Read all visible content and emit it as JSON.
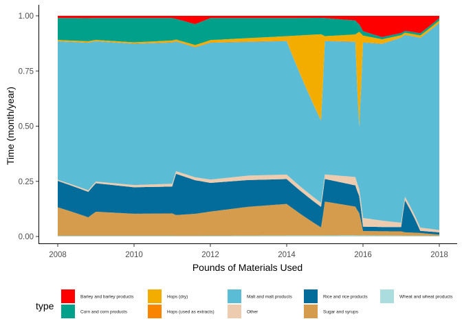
{
  "chart_data": {
    "type": "area",
    "stacked": "fill",
    "xlabel": "Pounds of Materials Used",
    "ylabel": "Time (month/year)",
    "xlim": [
      2008.0,
      2018.0
    ],
    "ylim": [
      0,
      1
    ],
    "x_ticks": [
      2008,
      2010,
      2012,
      2014,
      2016,
      2018
    ],
    "x_tick_labels": [
      "2008",
      "2010",
      "2012",
      "2014",
      "2016",
      "2018"
    ],
    "y_ticks": [
      0.0,
      0.25,
      0.5,
      0.75,
      1.0
    ],
    "y_tick_labels": [
      "0.00",
      "0.25",
      "0.50",
      "0.75",
      "1.00"
    ],
    "grid": false,
    "legend_position": "bottom",
    "legend_title": "type",
    "legend": [
      {
        "key": "barley",
        "label": "Barley and barley products",
        "color": "#FF0000"
      },
      {
        "key": "corn",
        "label": "Corn and corn products",
        "color": "#00A08A"
      },
      {
        "key": "hops_dry",
        "label": "Hops (dry)",
        "color": "#F2AD00"
      },
      {
        "key": "hops_ext",
        "label": "Hops (used as extracts)",
        "color": "#F98400"
      },
      {
        "key": "malt",
        "label": "Malt and malt products",
        "color": "#5BBCD6"
      },
      {
        "key": "other",
        "label": "Other",
        "color": "#ECCBAE"
      },
      {
        "key": "rice",
        "label": "Rice and rice products",
        "color": "#046C9A"
      },
      {
        "key": "sugar",
        "label": "Sugar and syrups",
        "color": "#D69C4E"
      },
      {
        "key": "wheat",
        "label": "Wheat and wheat products",
        "color": "#ABDDDE"
      }
    ],
    "stack_order_bottom_to_top": [
      "wheat",
      "sugar",
      "rice",
      "other",
      "malt",
      "hops_ext",
      "hops_dry",
      "corn",
      "barley"
    ],
    "series": [
      {
        "name": "Barley and barley products",
        "key": "barley",
        "x": [
          2008.0,
          2009.0,
          2010.0,
          2011.0,
          2011.6,
          2012.0,
          2013.0,
          2014.0,
          2015.0,
          2015.8,
          2016.0,
          2016.5,
          2017.0,
          2017.5,
          2018.0
        ],
        "y": [
          0.01,
          0.01,
          0.01,
          0.01,
          0.04,
          0.01,
          0.01,
          0.01,
          0.01,
          0.02,
          0.07,
          0.1,
          0.08,
          0.08,
          0.01
        ]
      },
      {
        "name": "Corn and corn products",
        "key": "corn",
        "x": [
          2008.0,
          2009.0,
          2010.0,
          2011.0,
          2012.0,
          2013.0,
          2014.0,
          2015.0,
          2015.8,
          2016.0,
          2016.5,
          2017.0,
          2017.5,
          2018.0
        ],
        "y": [
          0.1,
          0.1,
          0.11,
          0.1,
          0.1,
          0.09,
          0.08,
          0.08,
          0.06,
          0.02,
          0.01,
          0.01,
          0.01,
          0.01
        ]
      },
      {
        "name": "Hops (dry)",
        "key": "hops_dry",
        "x": [
          2008.0,
          2010.0,
          2012.0,
          2013.0,
          2014.0,
          2014.9,
          2015.0,
          2015.8,
          2015.9,
          2016.0,
          2017.0,
          2018.0
        ],
        "y": [
          0.005,
          0.005,
          0.01,
          0.015,
          0.02,
          0.42,
          0.02,
          0.03,
          0.5,
          0.03,
          0.01,
          0.01
        ]
      },
      {
        "name": "Hops (used as extracts)",
        "key": "hops_ext",
        "x": [
          2008.0,
          2012.0,
          2016.0,
          2018.0
        ],
        "y": [
          0.001,
          0.002,
          0.002,
          0.001
        ]
      },
      {
        "name": "Malt and malt products",
        "key": "malt",
        "x": [
          2008.0,
          2009.0,
          2010.0,
          2011.0,
          2012.0,
          2013.0,
          2014.0,
          2014.9,
          2015.0,
          2015.8,
          2015.9,
          2016.0,
          2016.5,
          2017.0,
          2017.5,
          2018.0
        ],
        "y": [
          0.63,
          0.64,
          0.64,
          0.63,
          0.62,
          0.6,
          0.59,
          0.4,
          0.59,
          0.58,
          0.33,
          0.8,
          0.83,
          0.86,
          0.87,
          0.9
        ]
      },
      {
        "name": "Other",
        "key": "other",
        "x": [
          2008.0,
          2010.0,
          2012.0,
          2013.0,
          2014.0,
          2015.0,
          2016.0,
          2016.5,
          2017.0,
          2018.0
        ],
        "y": [
          0.005,
          0.01,
          0.015,
          0.02,
          0.02,
          0.02,
          0.04,
          0.03,
          0.02,
          0.01
        ]
      },
      {
        "name": "Rice and rice products",
        "key": "rice",
        "x": [
          2008.0,
          2008.8,
          2009.0,
          2010.0,
          2011.0,
          2011.1,
          2012.0,
          2013.0,
          2014.0,
          2014.9,
          2015.0,
          2015.9,
          2016.0,
          2016.5,
          2017.0,
          2017.1,
          2017.5,
          2018.0
        ],
        "y": [
          0.12,
          0.11,
          0.13,
          0.12,
          0.12,
          0.2,
          0.13,
          0.12,
          0.11,
          0.1,
          0.1,
          0.09,
          0.02,
          0.02,
          0.02,
          0.17,
          0.01,
          0.01
        ]
      },
      {
        "name": "Sugar and syrups",
        "key": "sugar",
        "x": [
          2008.0,
          2008.8,
          2009.0,
          2010.0,
          2011.0,
          2012.0,
          2013.0,
          2014.0,
          2014.9,
          2015.0,
          2015.9,
          2016.0,
          2016.5,
          2017.0,
          2018.0
        ],
        "y": [
          0.13,
          0.08,
          0.11,
          0.1,
          0.1,
          0.11,
          0.13,
          0.14,
          0.04,
          0.15,
          0.12,
          0.02,
          0.02,
          0.02,
          0.005
        ]
      },
      {
        "name": "Wheat and wheat products",
        "key": "wheat",
        "x": [
          2008.0,
          2012.0,
          2016.0,
          2018.0
        ],
        "y": [
          0.003,
          0.003,
          0.005,
          0.003
        ]
      }
    ]
  }
}
